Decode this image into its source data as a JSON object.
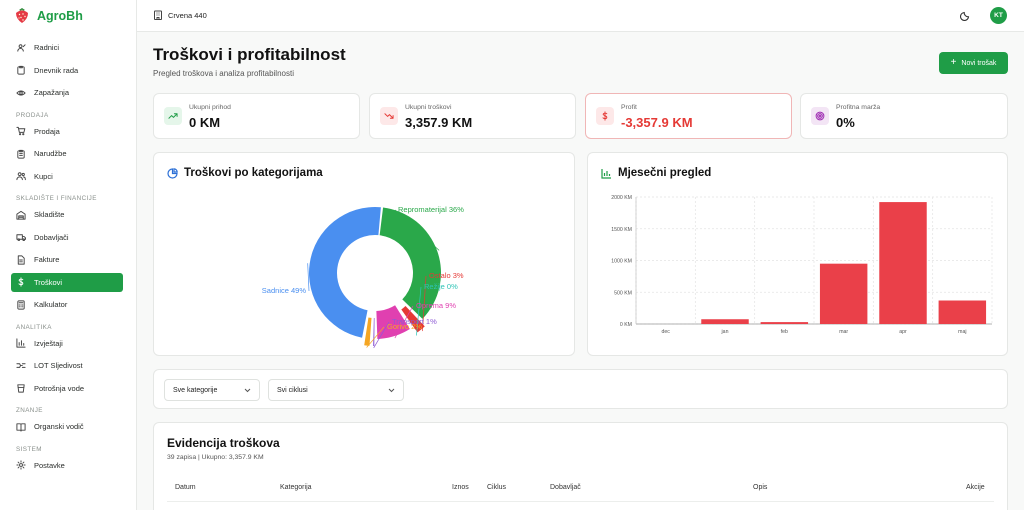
{
  "app": {
    "name": "AgroBh"
  },
  "farm": {
    "name": "Crvena 440"
  },
  "user": {
    "initials": "KT"
  },
  "sidebar": {
    "top": [
      {
        "label": "Radnici",
        "icon": "workers-icon"
      },
      {
        "label": "Dnevnik rada",
        "icon": "clipboard-icon"
      },
      {
        "label": "Zapažanja",
        "icon": "eye-icon"
      }
    ],
    "sections": [
      {
        "title": "PRODAJA",
        "items": [
          {
            "label": "Prodaja",
            "icon": "cart-icon"
          },
          {
            "label": "Narudžbe",
            "icon": "clipboard-list-icon"
          },
          {
            "label": "Kupci",
            "icon": "users-icon"
          }
        ]
      },
      {
        "title": "SKLADIŠTE I FINANCIJE",
        "items": [
          {
            "label": "Skladište",
            "icon": "warehouse-icon"
          },
          {
            "label": "Dobavljači",
            "icon": "truck-icon"
          },
          {
            "label": "Fakture",
            "icon": "file-icon"
          },
          {
            "label": "Troškovi",
            "icon": "dollar-icon",
            "active": true
          },
          {
            "label": "Kalkulator",
            "icon": "calculator-icon"
          }
        ]
      },
      {
        "title": "ANALITIKA",
        "items": [
          {
            "label": "Izvještaji",
            "icon": "bar-chart-icon"
          },
          {
            "label": "LOT Sljedivost",
            "icon": "trace-icon"
          },
          {
            "label": "Potrošnja vode",
            "icon": "water-icon"
          }
        ]
      },
      {
        "title": "ZNANJE",
        "items": [
          {
            "label": "Organski vodič",
            "icon": "book-icon"
          }
        ]
      },
      {
        "title": "SISTEM",
        "items": [
          {
            "label": "Postavke",
            "icon": "gear-icon"
          }
        ]
      }
    ]
  },
  "page": {
    "title": "Troškovi i profitabilnost",
    "subtitle": "Pregled troškova i analiza profitabilnosti",
    "new_button": "Novi trošak"
  },
  "stats": [
    {
      "label": "Ukupni prihod",
      "value": "0 KM",
      "icon": "trending-up-icon",
      "color": "#1f9d47",
      "bg": "#e5f6ea"
    },
    {
      "label": "Ukupni troškovi",
      "value": "3,357.9 KM",
      "icon": "trending-down-icon",
      "color": "#e53935",
      "bg": "#fde8e8"
    },
    {
      "label": "Profit",
      "value": "-3,357.9 KM",
      "icon": "dollar-icon",
      "color": "#e53935",
      "bg": "#fde8e8"
    },
    {
      "label": "Profitna marža",
      "value": "0%",
      "icon": "target-icon",
      "color": "#9c27b0",
      "bg": "#f3e5f5"
    }
  ],
  "pie": {
    "title": "Troškovi po kategorijama",
    "chart_data": {
      "type": "pie",
      "slices": [
        {
          "label": "Repromaterijal",
          "value": 36,
          "color": "#2aa84a",
          "text": "Repromaterijal 36%"
        },
        {
          "label": "Ostalo",
          "value": 3,
          "color": "#e53935",
          "text": "Ostalo 3%"
        },
        {
          "label": "Režije",
          "value": 0,
          "color": "#2ec4b6",
          "text": "Režije 0%"
        },
        {
          "label": "Oprema",
          "value": 9,
          "color": "#e040b0",
          "text": "Oprema 9%"
        },
        {
          "label": "Transport",
          "value": 1,
          "color": "#8e5bd4",
          "text": "Transport 1%"
        },
        {
          "label": "Gorivo",
          "value": 2,
          "color": "#f5a623",
          "text": "Gorivo 2%"
        },
        {
          "label": "Sadnice",
          "value": 49,
          "color": "#4a8ff0",
          "text": "Sadnice 49%"
        }
      ]
    }
  },
  "bar": {
    "title": "Mjesečni pregled",
    "chart_data": {
      "type": "bar",
      "categories": [
        "dec",
        "jan",
        "feb",
        "mar",
        "apr",
        "maj"
      ],
      "values": [
        0,
        75,
        30,
        950,
        1920,
        370
      ],
      "ylim": [
        0,
        2000
      ],
      "ytick_labels": [
        "0 KM",
        "500 KM",
        "1000 KM",
        "1500 KM",
        "2000 KM"
      ],
      "yticks": [
        0,
        500,
        1000,
        1500,
        2000
      ],
      "color": "#ea4049",
      "grid": true
    }
  },
  "filters": {
    "category": "Sve kategorije",
    "cycle": "Svi ciklusi"
  },
  "table": {
    "title": "Evidencija troškova",
    "summary": "39 zapisa | Ukupno: 3,357.9 KM",
    "headers": [
      "Datum",
      "Kategorija",
      "Iznos",
      "Ciklus",
      "Dobavljač",
      "Opis",
      "Akcije"
    ]
  }
}
